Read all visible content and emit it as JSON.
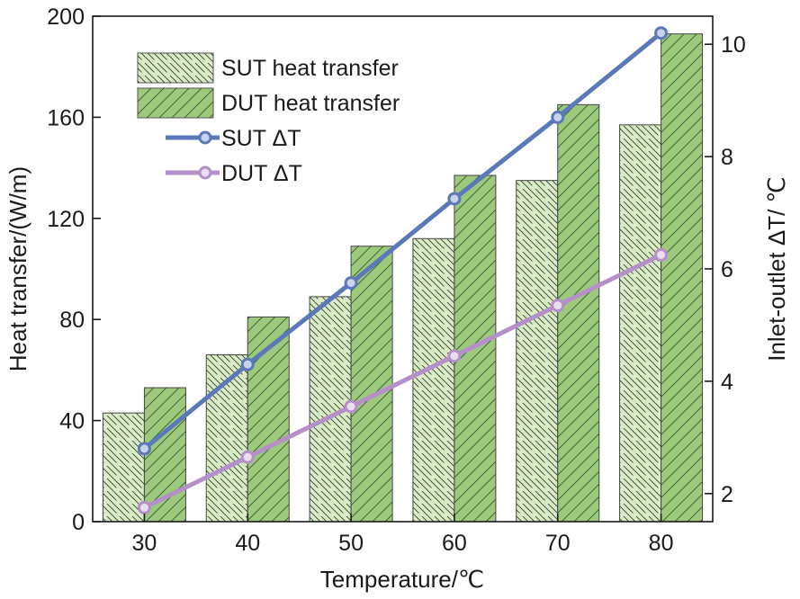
{
  "chart_data": {
    "type": "bar",
    "categories": [
      "30",
      "40",
      "50",
      "60",
      "70",
      "80"
    ],
    "xlabel": "Temperature/℃",
    "ylabel": "Heat transfer/(W/m)",
    "y2label": "Inlet-outlet ΔT/ ℃",
    "ylim": [
      0,
      200
    ],
    "y2lim": [
      1.5,
      10.5
    ],
    "yticks": [
      "0",
      "40",
      "80",
      "120",
      "160",
      "200"
    ],
    "y2ticks": [
      "2",
      "4",
      "6",
      "8",
      "10"
    ],
    "grid": false,
    "legend_position": "top-left",
    "series": [
      {
        "name": "SUT heat transfer",
        "kind": "bar",
        "axis": "left",
        "color": "#d9edc4",
        "values": [
          43,
          66,
          89,
          112,
          135,
          157
        ]
      },
      {
        "name": "DUT heat transfer",
        "kind": "bar",
        "axis": "left",
        "color": "#9dc97d",
        "values": [
          53,
          81,
          109,
          137,
          165,
          193
        ]
      },
      {
        "name": "SUT ΔT",
        "kind": "line",
        "axis": "right",
        "color": "#5b79b8",
        "values": [
          2.8,
          4.3,
          5.75,
          7.25,
          8.7,
          10.2
        ]
      },
      {
        "name": "DUT ΔT",
        "kind": "line",
        "axis": "right",
        "color": "#b48fc9",
        "values": [
          1.75,
          2.65,
          3.55,
          4.45,
          5.35,
          6.25
        ]
      }
    ]
  }
}
